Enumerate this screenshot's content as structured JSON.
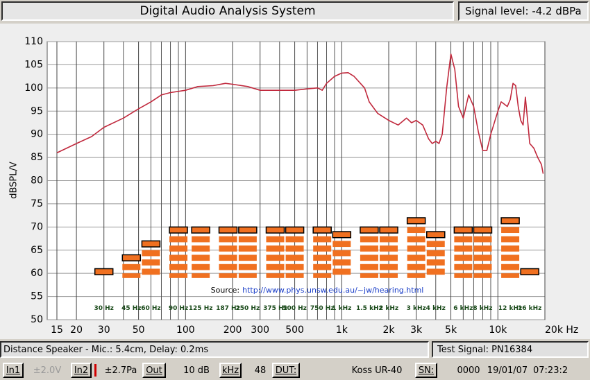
{
  "ui": {
    "title": "Digital Audio Analysis System",
    "signal_level": "Signal level: -4.2 dBPa",
    "status": "Distance Speaker - Mic.: 5.4cm, Delay: 0.2ms",
    "test_signal": "Test Signal: PN16384",
    "toolbar": [
      "In1",
      "±2.0V",
      "In2",
      "±2.7Pa",
      "Out",
      "10 dB",
      "kHz",
      "48",
      "DUT:",
      "Koss UR-40",
      "SN:",
      "0000",
      "19/01/07",
      "07:23:2"
    ]
  },
  "chart_data": {
    "type": "line",
    "y_label": "dBSPL/V",
    "log_x": true,
    "grid": true,
    "xlim": [
      13,
      20000
    ],
    "ylim": [
      50,
      110
    ],
    "xticks": [
      15,
      20,
      30,
      50,
      100,
      200,
      300,
      500,
      {
        "value": 1000,
        "label": "1k"
      },
      {
        "value": 2000,
        "label": "2k"
      },
      {
        "value": 3000,
        "label": "3k"
      },
      {
        "value": 5000,
        "label": "5k"
      },
      {
        "value": 10000,
        "label": "10k"
      },
      {
        "value": 20000,
        "label": "20k Hz"
      }
    ],
    "x_minor_grid": [
      40,
      60,
      70,
      80,
      90,
      400,
      600,
      700,
      800,
      900,
      4000,
      6000,
      7000,
      8000,
      9000
    ],
    "yticks": [
      50,
      55,
      60,
      65,
      70,
      75,
      80,
      85,
      90,
      95,
      100,
      105,
      110
    ],
    "series": [
      {
        "color": "#c0283c",
        "x": [
          15,
          20,
          25,
          30,
          40,
          50,
          60,
          70,
          80,
          100,
          120,
          150,
          180,
          200,
          250,
          300,
          400,
          500,
          600,
          700,
          750,
          800,
          900,
          1000,
          1100,
          1200,
          1400,
          1500,
          1700,
          2000,
          2300,
          2600,
          2800,
          3000,
          3300,
          3600,
          3800,
          4000,
          4200,
          4400,
          4700,
          5000,
          5300,
          5600,
          6000,
          6500,
          7000,
          7500,
          8000,
          8500,
          9000,
          10000,
          10500,
          11000,
          11500,
          12000,
          12500,
          13000,
          13500,
          14000,
          14500,
          15000,
          15500,
          16000,
          17000,
          18000,
          19000,
          19500
        ],
        "values": [
          86,
          88,
          89.5,
          91.5,
          93.5,
          95.5,
          97,
          98.5,
          99,
          99.5,
          100.3,
          100.5,
          101,
          100.8,
          100.3,
          99.5,
          99.5,
          99.5,
          99.8,
          100,
          99.5,
          101,
          102.5,
          103.2,
          103.3,
          102.5,
          100,
          97,
          94.5,
          93,
          92,
          93.5,
          92.5,
          93,
          92,
          89,
          88,
          88.5,
          88,
          90,
          100,
          107.3,
          104,
          96,
          93.5,
          98.5,
          96,
          90.5,
          86.5,
          86.5,
          90,
          95,
          97,
          96.5,
          96,
          97.5,
          101,
          100.5,
          96,
          93,
          92,
          98,
          93,
          88,
          87,
          85,
          83.5,
          81.5
        ]
      }
    ],
    "bars": {
      "color": "#f07020",
      "base": 59,
      "categories": [
        "30 Hz",
        "45 Hz",
        "60 Hz",
        "90 Hz",
        "125 Hz",
        "187 Hz",
        "250 Hz",
        "375 Hz",
        "500 Hz",
        "750 Hz",
        "1 kHz",
        "1.5 kHz",
        "2 kHz",
        "3 kHz",
        "4 kHz",
        "6 kHz",
        "8 kHz",
        "12 kHz",
        "16 kHz"
      ],
      "x": [
        30,
        45,
        60,
        90,
        125,
        187,
        250,
        375,
        500,
        750,
        1000,
        1500,
        2000,
        3000,
        4000,
        6000,
        8000,
        12000,
        16000
      ],
      "values": [
        61,
        64,
        67,
        70,
        70,
        70,
        70,
        70,
        70,
        70,
        69,
        70,
        70,
        72,
        69,
        70,
        70,
        72,
        61
      ]
    },
    "source": {
      "label": "Source:",
      "url": "http://www.phys.unsw.edu.au/~jw/hearing.html"
    }
  }
}
